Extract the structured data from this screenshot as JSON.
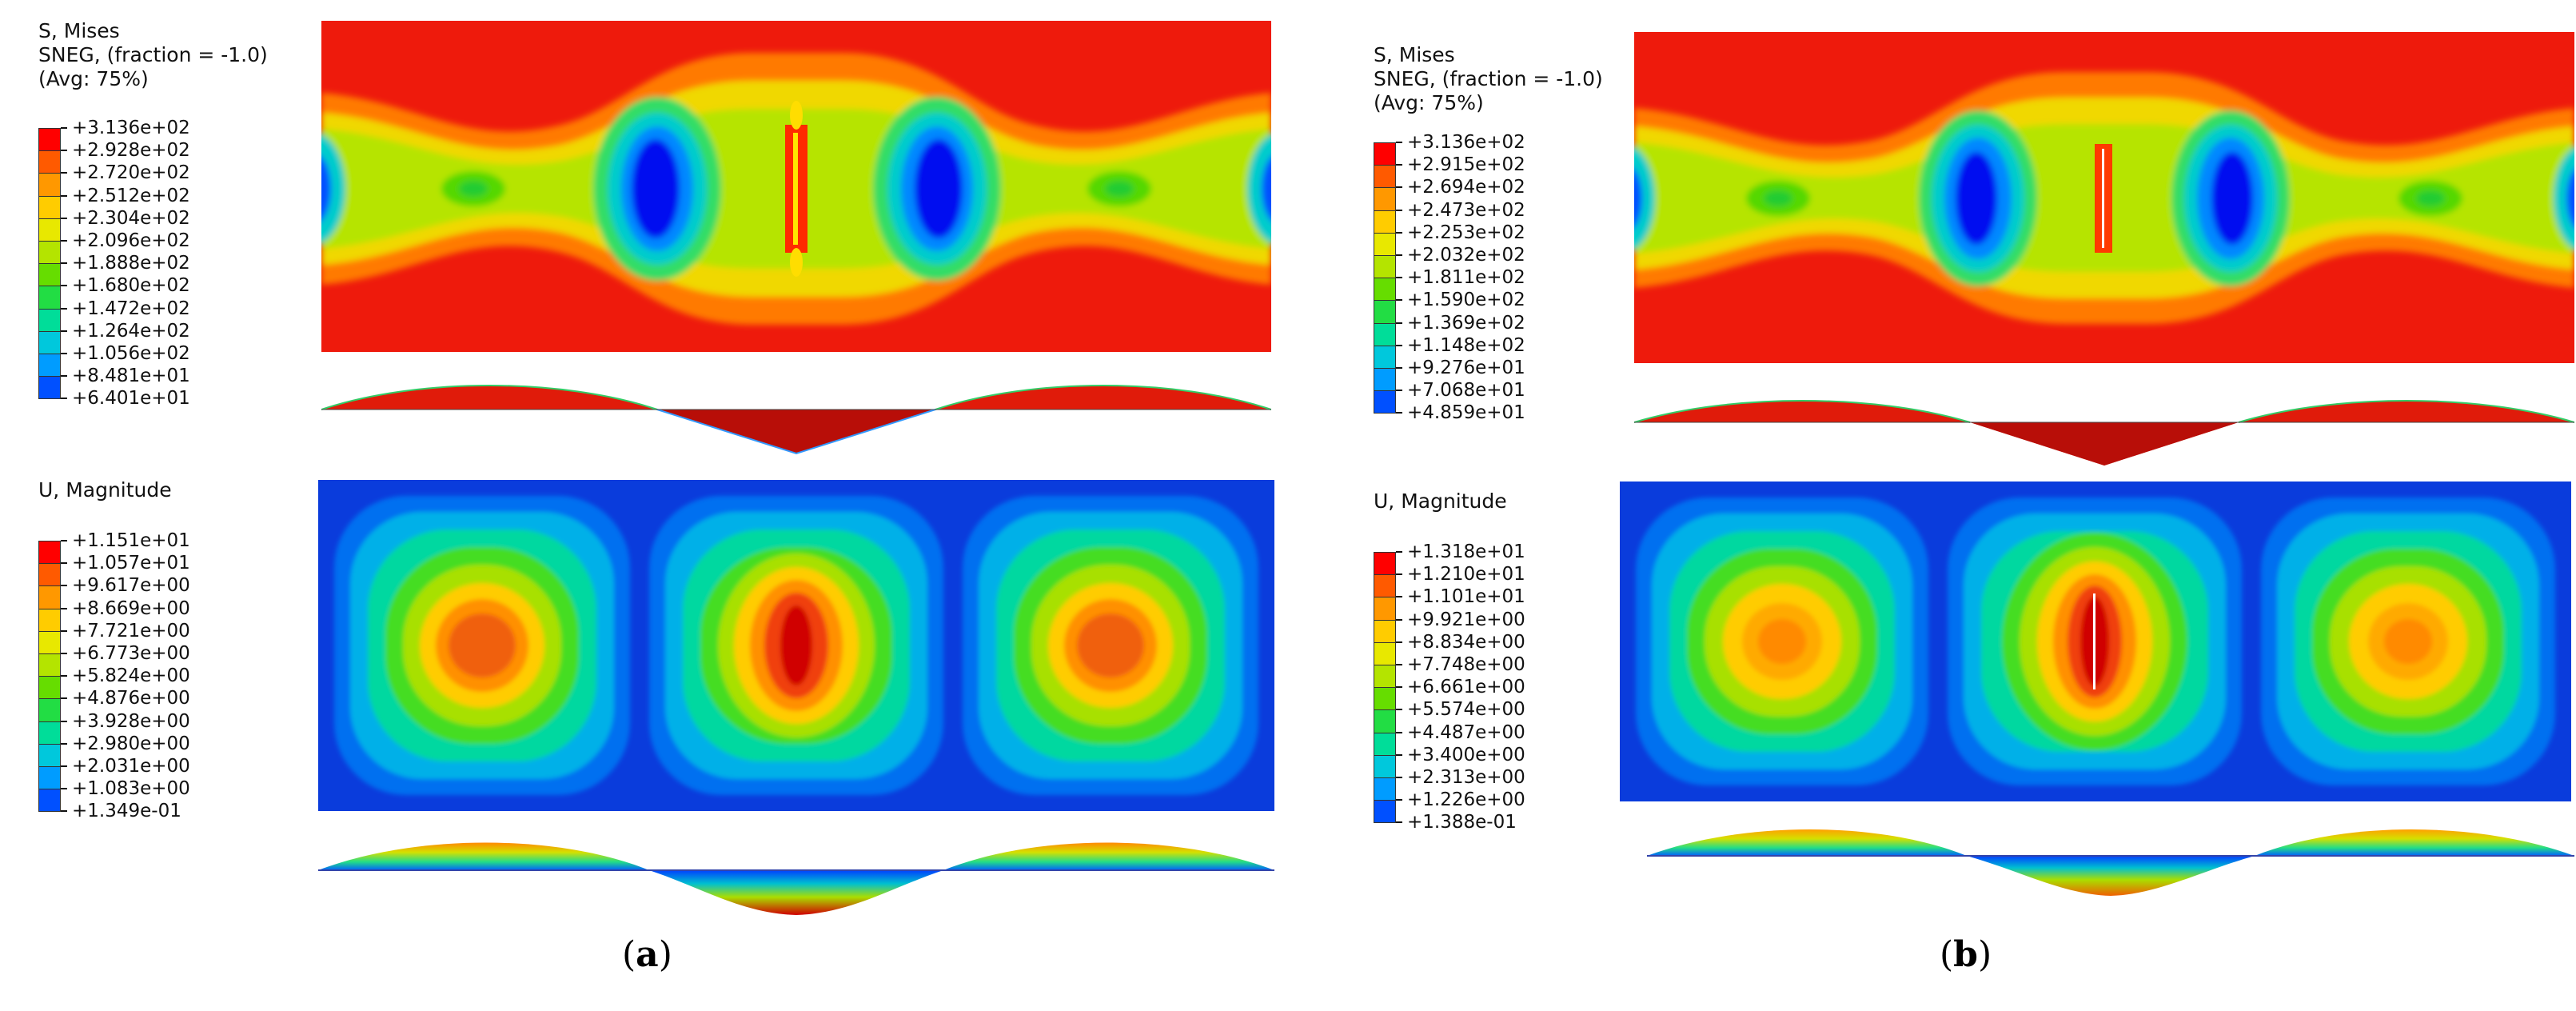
{
  "panels": [
    {
      "id": "a",
      "caption_open": "(",
      "caption_letter": "a",
      "caption_close": ")",
      "stress": {
        "title_lines": [
          "S, Mises",
          "SNEG, (fraction = -1.0)",
          "(Avg: 75%)"
        ],
        "legend": [
          "+3.136e+02",
          "+2.928e+02",
          "+2.720e+02",
          "+2.512e+02",
          "+2.304e+02",
          "+2.096e+02",
          "+1.888e+02",
          "+1.680e+02",
          "+1.472e+02",
          "+1.264e+02",
          "+1.056e+02",
          "+8.481e+01",
          "+6.401e+01"
        ]
      },
      "displacement": {
        "title_lines": [
          "U, Magnitude"
        ],
        "legend": [
          "+1.151e+01",
          "+1.057e+01",
          "+9.617e+00",
          "+8.669e+00",
          "+7.721e+00",
          "+6.773e+00",
          "+5.824e+00",
          "+4.876e+00",
          "+3.928e+00",
          "+2.980e+00",
          "+2.031e+00",
          "+1.083e+00",
          "+1.349e-01"
        ]
      }
    },
    {
      "id": "b",
      "caption_open": "(",
      "caption_letter": "b",
      "caption_close": ")",
      "stress": {
        "title_lines": [
          "S, Mises",
          "SNEG, (fraction = -1.0)",
          "(Avg: 75%)"
        ],
        "legend": [
          "+3.136e+02",
          "+2.915e+02",
          "+2.694e+02",
          "+2.473e+02",
          "+2.253e+02",
          "+2.032e+02",
          "+1.811e+02",
          "+1.590e+02",
          "+1.369e+02",
          "+1.148e+02",
          "+9.276e+01",
          "+7.068e+01",
          "+4.859e+01"
        ]
      },
      "displacement": {
        "title_lines": [
          "U, Magnitude"
        ],
        "legend": [
          "+1.318e+01",
          "+1.210e+01",
          "+1.101e+01",
          "+9.921e+00",
          "+8.834e+00",
          "+7.748e+00",
          "+6.661e+00",
          "+5.574e+00",
          "+4.487e+00",
          "+3.400e+00",
          "+2.313e+00",
          "+1.226e+00",
          "+1.388e-01"
        ]
      }
    }
  ],
  "colormap": [
    "#ff0000",
    "#ff5a00",
    "#ff9800",
    "#ffcc00",
    "#e8e800",
    "#b4e400",
    "#66dd00",
    "#22dd44",
    "#00dd99",
    "#00c8dc",
    "#009cff",
    "#0050ff",
    "#0000ff"
  ]
}
